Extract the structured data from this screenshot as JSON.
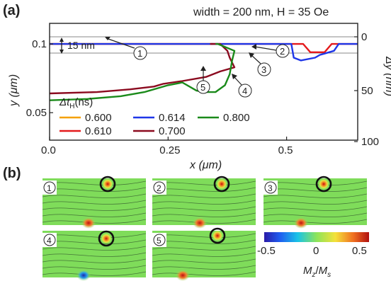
{
  "panel_a": {
    "label": "(a)",
    "header": "width = 200 nm, H = 35 Oe",
    "scale_note": "15 nm",
    "markers": [
      "1",
      "2",
      "3",
      "4",
      "5"
    ],
    "legend_title": "Δt_H (ns)",
    "legend_title_main": "Δt",
    "legend_title_sub": "H",
    "legend_title_unit": "(ns)",
    "legend": [
      {
        "name": "0.600",
        "color": "#f5a000"
      },
      {
        "name": "0.614",
        "color": "#1f37e8"
      },
      {
        "name": "0.800",
        "color": "#1a8a1a"
      },
      {
        "name": "0.610",
        "color": "#e41a1c"
      },
      {
        "name": "0.700",
        "color": "#8b0a1f"
      }
    ]
  },
  "chart_data": {
    "type": "line",
    "xlabel": "x (μm)",
    "ylabel": "y (μm)",
    "y2label": "Δy (nm)",
    "xlim": [
      0,
      0.65
    ],
    "ylim": [
      0.03,
      0.115
    ],
    "x_ticks": [
      "0.0",
      "0.25",
      "0.5"
    ],
    "y_ticks": [
      "0.05",
      "0.1"
    ],
    "y2_ticks": [
      "0",
      "50",
      "100"
    ],
    "series": [
      {
        "name": "0.600",
        "color": "#f5a000",
        "x": [
          0,
          0.345
        ],
        "y": [
          0.1,
          0.1
        ]
      },
      {
        "name": "0.610",
        "color": "#e41a1c",
        "x": [
          0,
          0.348,
          0.5,
          0.535,
          0.55,
          0.58,
          0.595,
          0.61,
          0.65
        ],
        "y": [
          0.1,
          0.1,
          0.1,
          0.1,
          0.094,
          0.094,
          0.1,
          0.1,
          0.1
        ]
      },
      {
        "name": "0.614",
        "color": "#1f37e8",
        "x": [
          0,
          0.35,
          0.51,
          0.515,
          0.53,
          0.56,
          0.57,
          0.58,
          0.6,
          0.61,
          0.65
        ],
        "y": [
          0.1,
          0.1,
          0.1,
          0.09,
          0.088,
          0.09,
          0.092,
          0.093,
          0.095,
          0.1,
          0.1
        ]
      },
      {
        "name": "0.700",
        "color": "#8b0a1f",
        "x": [
          0,
          0.1,
          0.17,
          0.22,
          0.24,
          0.28,
          0.33,
          0.36,
          0.39,
          0.38,
          0.375,
          0.36,
          0.34,
          0.34,
          0.35
        ],
        "y": [
          0.064,
          0.065,
          0.067,
          0.069,
          0.071,
          0.073,
          0.076,
          0.08,
          0.083,
          0.09,
          0.095,
          0.1,
          0.1,
          0.1,
          0.1
        ]
      },
      {
        "name": "0.800",
        "color": "#1a8a1a",
        "x": [
          0,
          0.08,
          0.15,
          0.2,
          0.25,
          0.28,
          0.31,
          0.33,
          0.35,
          0.37,
          0.38,
          0.385,
          0.39,
          0.355,
          0.35
        ],
        "y": [
          0.059,
          0.06,
          0.062,
          0.065,
          0.07,
          0.072,
          0.066,
          0.065,
          0.065,
          0.07,
          0.078,
          0.088,
          0.095,
          0.1,
          0.1
        ]
      }
    ]
  },
  "panel_b": {
    "label": "(b)",
    "snapshots": [
      "1",
      "2",
      "3",
      "4",
      "5"
    ],
    "colorbar_ticks": [
      "-0.5",
      "0",
      "0.5"
    ],
    "colorbar_label": "Mz/Ms",
    "colorbar_label_main": "M",
    "colorbar_label_sub1": "z",
    "colorbar_label_sep": "/",
    "colorbar_label_main2": "M",
    "colorbar_label_sub2": "s"
  }
}
